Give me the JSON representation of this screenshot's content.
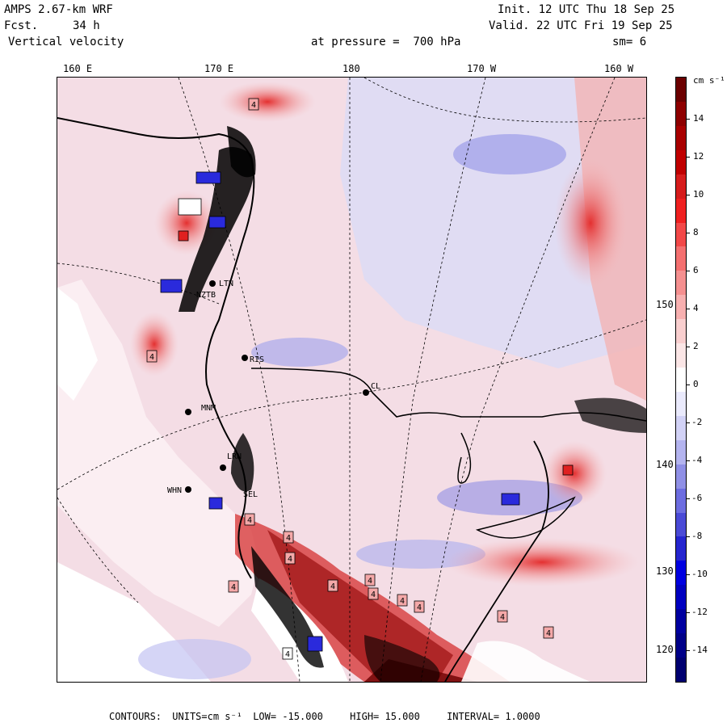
{
  "header": {
    "model": "AMPS 2.67-km WRF",
    "fcst_label": "Fcst.",
    "fcst_value": "34 h",
    "field": "Vertical velocity",
    "init": "Init. 12 UTC Thu 18 Sep 25",
    "valid": "Valid. 22 UTC Fri 19 Sep 25",
    "level": "at pressure =  700 hPa",
    "smoothing": "sm= 6"
  },
  "map": {
    "lon_labels": [
      "160 E",
      "170 E",
      "180",
      "170 W",
      "160 W"
    ],
    "lat_labels": [
      "150 W",
      "140 W",
      "130 W",
      "120 W"
    ],
    "stations": [
      "LTN",
      "NZTB",
      "RIS",
      "CL",
      "MNM",
      "LRN",
      "WHN",
      "SEL"
    ],
    "contour_marks": [
      "4",
      "4",
      "4",
      "4",
      "4",
      "4",
      "4",
      "4",
      "4",
      "4",
      "4",
      "4",
      "4",
      "4"
    ]
  },
  "colorbar": {
    "units_label": "cm s⁻¹",
    "tick_labels": [
      "14",
      "12",
      "10",
      "8",
      "6",
      "4",
      "2",
      "0",
      "-2",
      "-4",
      "-6",
      "-8",
      "-10",
      "-12",
      "-14"
    ],
    "colors": [
      "#6b0000",
      "#8e0000",
      "#a80000",
      "#c00000",
      "#d61c1c",
      "#ef2020",
      "#f24848",
      "#f47070",
      "#f59090",
      "#f7b0b0",
      "#f9cfcf",
      "#fbe6e6",
      "#ffffff",
      "#eaeafc",
      "#d2d2f6",
      "#b4b4ef",
      "#9090e6",
      "#6d6de0",
      "#4a4ad6",
      "#2525cf",
      "#0000e0",
      "#0000c0",
      "#0000a0",
      "#000088",
      "#000070"
    ]
  },
  "footer": {
    "contours_label": "CONTOURS:",
    "units": "UNITS=cm s⁻¹",
    "low": "LOW= -15.000",
    "high": "HIGH= 15.000",
    "interval": "INTERVAL=  1.0000"
  }
}
